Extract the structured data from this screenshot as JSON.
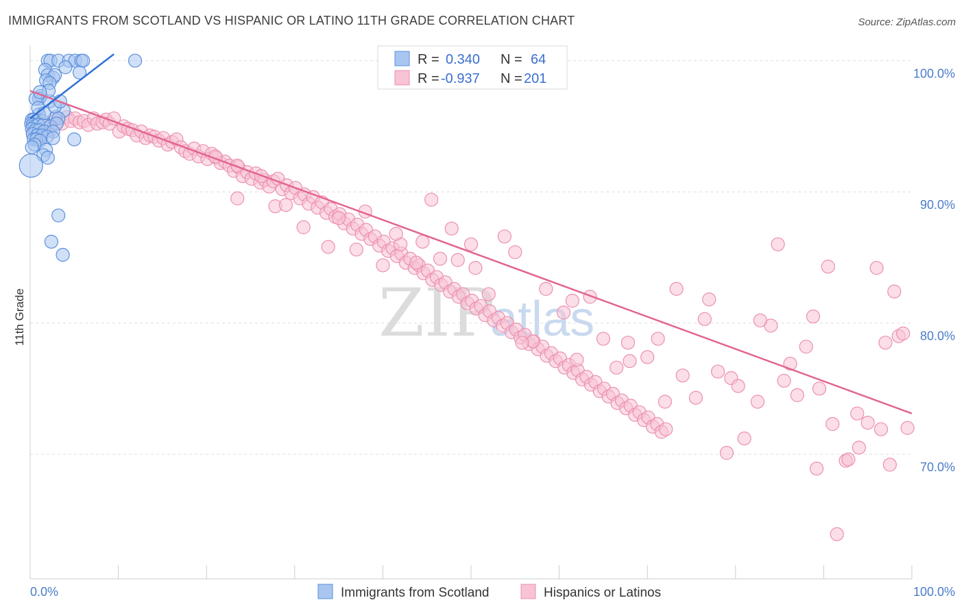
{
  "header": {
    "title": "IMMIGRANTS FROM SCOTLAND VS HISPANIC OR LATINO 11TH GRADE CORRELATION CHART",
    "source": "Source: ZipAtlas.com"
  },
  "watermark": {
    "zip": "ZIP",
    "atlas": "atlas"
  },
  "legend": {
    "blue": {
      "r_label": "R =",
      "r_value": "0.340",
      "n_label": "N =",
      "n_value": "64"
    },
    "pink": {
      "r_label": "R =",
      "r_value": "-0.937",
      "n_label": "N =",
      "n_value": "201"
    }
  },
  "colors": {
    "blue_fill": "#a9c6f0",
    "blue_stroke": "#5b8fdc",
    "blue_line": "#2d6fd6",
    "pink_fill": "#f8c3d4",
    "pink_stroke": "#ec8fb0",
    "pink_line": "#e2648f",
    "grid": "#dddddd",
    "label": "#4a7cc9"
  },
  "chart_data": {
    "type": "scatter",
    "title": "IMMIGRANTS FROM SCOTLAND VS HISPANIC OR LATINO 11TH GRADE CORRELATION CHART",
    "xlabel": "",
    "ylabel": "11th Grade",
    "xlim": [
      0,
      100
    ],
    "ylim": [
      60.5,
      100.5
    ],
    "x_tick_labels": [
      "0.0%",
      "100.0%"
    ],
    "y_tick_labels": [
      "70.0%",
      "80.0%",
      "90.0%",
      "100.0%"
    ],
    "y_ticks": [
      70,
      80,
      90,
      100
    ],
    "grid": true,
    "legend_position": "top-center",
    "series": [
      {
        "name": "Immigrants from Scotland",
        "color": "#a9c6f0",
        "trend": {
          "x": [
            0,
            9.5
          ],
          "y": [
            95.6,
            100.5
          ]
        },
        "points": [
          [
            2.0,
            100
          ],
          [
            2.3,
            100
          ],
          [
            3.2,
            100
          ],
          [
            4.4,
            100
          ],
          [
            5.1,
            100
          ],
          [
            5.8,
            100
          ],
          [
            6.0,
            100
          ],
          [
            11.9,
            100
          ],
          [
            4.0,
            99.5
          ],
          [
            5.6,
            99.1
          ],
          [
            1.7,
            99.3
          ],
          [
            2.0,
            98.9
          ],
          [
            2.6,
            98.7
          ],
          [
            2.8,
            98.9
          ],
          [
            1.8,
            98.5
          ],
          [
            2.2,
            98.3
          ],
          [
            1.2,
            97.3
          ],
          [
            1.0,
            97.1
          ],
          [
            0.6,
            97.1
          ],
          [
            2.2,
            96.9
          ],
          [
            3.8,
            96.2
          ],
          [
            1.0,
            95.9
          ],
          [
            0.2,
            95.5
          ],
          [
            0.4,
            95.5
          ],
          [
            0.7,
            95.4
          ],
          [
            1.4,
            95.4
          ],
          [
            2.9,
            95.7
          ],
          [
            3.2,
            95.6
          ],
          [
            0.1,
            95.2
          ],
          [
            0.3,
            95.1
          ],
          [
            0.5,
            95.0
          ],
          [
            0.9,
            95.1
          ],
          [
            1.5,
            95.1
          ],
          [
            2.3,
            95.0
          ],
          [
            3.0,
            95.2
          ],
          [
            0.2,
            94.8
          ],
          [
            0.6,
            94.7
          ],
          [
            1.0,
            94.7
          ],
          [
            1.6,
            94.6
          ],
          [
            2.6,
            94.6
          ],
          [
            0.3,
            94.4
          ],
          [
            0.8,
            94.3
          ],
          [
            1.3,
            94.3
          ],
          [
            1.9,
            94.2
          ],
          [
            0.4,
            94.0
          ],
          [
            0.7,
            94.0
          ],
          [
            1.1,
            93.9
          ],
          [
            2.6,
            94.1
          ],
          [
            5.0,
            94.0
          ],
          [
            0.5,
            93.6
          ],
          [
            0.2,
            93.4
          ],
          [
            1.8,
            93.2
          ],
          [
            1.5,
            92.8
          ],
          [
            2.0,
            92.6
          ],
          [
            0.1,
            92.0
          ],
          [
            3.2,
            88.2
          ],
          [
            2.4,
            86.2
          ],
          [
            3.7,
            85.2
          ],
          [
            0.9,
            96.4
          ],
          [
            1.6,
            96.0
          ],
          [
            2.8,
            96.5
          ],
          [
            3.4,
            96.9
          ],
          [
            2.1,
            97.7
          ],
          [
            1.1,
            97.6
          ]
        ]
      },
      {
        "name": "Hispanics or Latinos",
        "color": "#f8c3d4",
        "trend": {
          "x": [
            0,
            100
          ],
          "y": [
            97.7,
            73.1
          ]
        },
        "points": [
          [
            0.3,
            94.5
          ],
          [
            0.6,
            95.0
          ],
          [
            0.9,
            94.0
          ],
          [
            1.2,
            94.6
          ],
          [
            1.4,
            95.2
          ],
          [
            1.9,
            94.9
          ],
          [
            2.3,
            94.7
          ],
          [
            2.8,
            95.6
          ],
          [
            3.2,
            95.4
          ],
          [
            3.6,
            95.2
          ],
          [
            4.2,
            95.7
          ],
          [
            4.6,
            95.4
          ],
          [
            5.1,
            95.6
          ],
          [
            5.6,
            95.3
          ],
          [
            6.1,
            95.4
          ],
          [
            6.6,
            95.1
          ],
          [
            7.2,
            95.6
          ],
          [
            7.6,
            95.2
          ],
          [
            8.2,
            95.3
          ],
          [
            8.6,
            95.5
          ],
          [
            9.0,
            95.2
          ],
          [
            9.5,
            95.6
          ],
          [
            10.1,
            94.6
          ],
          [
            10.6,
            95.0
          ],
          [
            11.1,
            94.8
          ],
          [
            11.6,
            94.7
          ],
          [
            12.1,
            94.3
          ],
          [
            12.6,
            94.6
          ],
          [
            13.1,
            94.1
          ],
          [
            13.6,
            94.3
          ],
          [
            14.1,
            94.2
          ],
          [
            14.6,
            93.9
          ],
          [
            15.1,
            94.1
          ],
          [
            15.6,
            93.6
          ],
          [
            16.1,
            93.8
          ],
          [
            16.6,
            94.0
          ],
          [
            17.1,
            93.4
          ],
          [
            17.6,
            93.1
          ],
          [
            18.1,
            92.9
          ],
          [
            18.6,
            93.3
          ],
          [
            19.1,
            92.7
          ],
          [
            19.6,
            93.1
          ],
          [
            20.1,
            92.5
          ],
          [
            20.6,
            92.9
          ],
          [
            21.1,
            92.6
          ],
          [
            21.6,
            92.2
          ],
          [
            22.1,
            92.3
          ],
          [
            22.6,
            92.0
          ],
          [
            23.1,
            91.6
          ],
          [
            23.6,
            91.9
          ],
          [
            24.1,
            91.2
          ],
          [
            24.6,
            91.5
          ],
          [
            25.1,
            91.0
          ],
          [
            25.6,
            91.4
          ],
          [
            26.1,
            90.7
          ],
          [
            26.6,
            90.9
          ],
          [
            27.1,
            90.4
          ],
          [
            27.6,
            90.8
          ],
          [
            28.1,
            91.0
          ],
          [
            28.6,
            90.2
          ],
          [
            29.1,
            90.5
          ],
          [
            29.6,
            89.9
          ],
          [
            30.1,
            90.3
          ],
          [
            30.6,
            89.5
          ],
          [
            31.1,
            89.8
          ],
          [
            31.6,
            89.1
          ],
          [
            32.1,
            89.6
          ],
          [
            32.6,
            88.8
          ],
          [
            33.1,
            89.2
          ],
          [
            33.6,
            88.4
          ],
          [
            34.1,
            88.7
          ],
          [
            34.6,
            88.1
          ],
          [
            35.1,
            88.3
          ],
          [
            35.6,
            87.6
          ],
          [
            36.1,
            87.9
          ],
          [
            36.6,
            87.2
          ],
          [
            37.1,
            87.5
          ],
          [
            37.6,
            86.8
          ],
          [
            38.1,
            87.1
          ],
          [
            38.6,
            86.4
          ],
          [
            39.1,
            86.6
          ],
          [
            39.6,
            85.9
          ],
          [
            40.1,
            86.2
          ],
          [
            40.6,
            85.5
          ],
          [
            41.1,
            85.7
          ],
          [
            41.6,
            85.1
          ],
          [
            42.1,
            85.3
          ],
          [
            42.6,
            84.6
          ],
          [
            43.1,
            84.9
          ],
          [
            43.6,
            84.2
          ],
          [
            44.1,
            84.4
          ],
          [
            44.6,
            83.8
          ],
          [
            45.1,
            84.0
          ],
          [
            45.6,
            83.3
          ],
          [
            46.1,
            83.5
          ],
          [
            46.6,
            82.9
          ],
          [
            47.1,
            83.1
          ],
          [
            47.6,
            82.4
          ],
          [
            48.1,
            82.6
          ],
          [
            48.6,
            82.0
          ],
          [
            49.1,
            82.2
          ],
          [
            49.6,
            81.5
          ],
          [
            50.1,
            81.7
          ],
          [
            50.6,
            81.1
          ],
          [
            51.1,
            81.3
          ],
          [
            51.6,
            80.6
          ],
          [
            52.1,
            80.9
          ],
          [
            52.6,
            80.2
          ],
          [
            53.1,
            80.4
          ],
          [
            53.6,
            79.8
          ],
          [
            54.1,
            80.0
          ],
          [
            54.6,
            79.3
          ],
          [
            55.1,
            79.5
          ],
          [
            55.6,
            78.9
          ],
          [
            56.1,
            79.1
          ],
          [
            56.6,
            78.4
          ],
          [
            57.1,
            78.6
          ],
          [
            57.6,
            78.0
          ],
          [
            58.1,
            78.2
          ],
          [
            58.6,
            77.5
          ],
          [
            59.1,
            77.7
          ],
          [
            59.6,
            77.1
          ],
          [
            60.1,
            77.3
          ],
          [
            60.6,
            76.6
          ],
          [
            61.1,
            76.8
          ],
          [
            61.6,
            76.2
          ],
          [
            62.1,
            76.4
          ],
          [
            62.6,
            75.7
          ],
          [
            63.1,
            75.9
          ],
          [
            63.6,
            75.3
          ],
          [
            64.1,
            75.5
          ],
          [
            64.6,
            74.8
          ],
          [
            65.1,
            75.0
          ],
          [
            65.6,
            74.4
          ],
          [
            66.1,
            74.6
          ],
          [
            66.6,
            73.9
          ],
          [
            67.1,
            74.1
          ],
          [
            67.6,
            73.5
          ],
          [
            68.1,
            73.7
          ],
          [
            68.6,
            73.0
          ],
          [
            69.1,
            73.2
          ],
          [
            69.6,
            72.6
          ],
          [
            70.1,
            72.8
          ],
          [
            70.6,
            72.1
          ],
          [
            71.1,
            72.3
          ],
          [
            71.6,
            71.7
          ],
          [
            72.1,
            71.9
          ],
          [
            21.0,
            92.7
          ],
          [
            23.5,
            89.5
          ],
          [
            27.8,
            88.9
          ],
          [
            31.0,
            87.3
          ],
          [
            33.8,
            85.8
          ],
          [
            37.0,
            85.6
          ],
          [
            40.0,
            84.4
          ],
          [
            42.0,
            86.0
          ],
          [
            44.5,
            86.2
          ],
          [
            46.5,
            84.9
          ],
          [
            48.5,
            84.8
          ],
          [
            50.5,
            84.2
          ],
          [
            52.0,
            82.2
          ],
          [
            53.8,
            86.6
          ],
          [
            55.0,
            85.4
          ],
          [
            57.0,
            78.6
          ],
          [
            58.5,
            82.6
          ],
          [
            60.5,
            80.8
          ],
          [
            62.0,
            77.2
          ],
          [
            63.5,
            82.0
          ],
          [
            65.0,
            78.8
          ],
          [
            66.5,
            76.6
          ],
          [
            68.0,
            77.1
          ],
          [
            70.0,
            77.4
          ],
          [
            72.0,
            74.0
          ],
          [
            74.0,
            76.0
          ],
          [
            75.5,
            74.3
          ],
          [
            77.0,
            81.8
          ],
          [
            78.0,
            76.3
          ],
          [
            79.5,
            75.8
          ],
          [
            81.0,
            71.2
          ],
          [
            82.5,
            74.0
          ],
          [
            84.0,
            79.8
          ],
          [
            85.5,
            75.6
          ],
          [
            87.0,
            74.5
          ],
          [
            88.0,
            78.2
          ],
          [
            89.5,
            75.0
          ],
          [
            91.0,
            72.3
          ],
          [
            92.5,
            69.5
          ],
          [
            94.0,
            70.5
          ],
          [
            95.0,
            72.4
          ],
          [
            96.5,
            71.9
          ],
          [
            97.5,
            69.2
          ],
          [
            98.5,
            79.0
          ],
          [
            99.0,
            79.2
          ],
          [
            99.5,
            72.0
          ],
          [
            96.0,
            84.2
          ],
          [
            98.0,
            82.4
          ],
          [
            90.5,
            84.3
          ],
          [
            84.8,
            86.0
          ],
          [
            79.0,
            70.1
          ],
          [
            91.5,
            63.9
          ],
          [
            88.8,
            80.5
          ],
          [
            76.5,
            80.3
          ],
          [
            73.3,
            82.6
          ],
          [
            45.5,
            89.4
          ],
          [
            29.0,
            89.0
          ],
          [
            23.5,
            92.0
          ],
          [
            26.2,
            91.2
          ],
          [
            35.0,
            88.0
          ],
          [
            38.0,
            88.5
          ],
          [
            41.5,
            86.8
          ],
          [
            43.8,
            84.6
          ],
          [
            47.8,
            87.2
          ],
          [
            50.0,
            86.0
          ],
          [
            55.8,
            78.5
          ],
          [
            61.5,
            81.7
          ],
          [
            67.8,
            78.5
          ],
          [
            71.2,
            78.8
          ],
          [
            80.3,
            75.2
          ],
          [
            82.8,
            80.2
          ],
          [
            86.2,
            76.9
          ],
          [
            89.2,
            68.9
          ],
          [
            93.8,
            73.1
          ],
          [
            92.8,
            69.6
          ],
          [
            97.0,
            78.5
          ]
        ]
      }
    ]
  },
  "bottom_legend": {
    "blue_label": "Immigrants from Scotland",
    "pink_label": "Hispanics or Latinos"
  }
}
